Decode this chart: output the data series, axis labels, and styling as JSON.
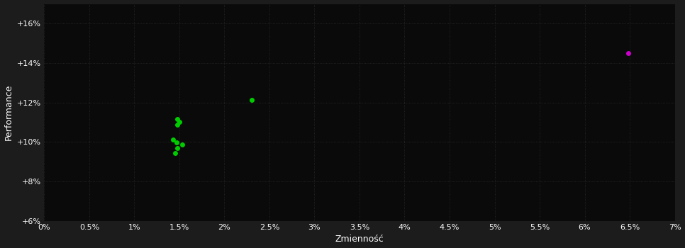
{
  "background_color": "#1c1c1c",
  "plot_bg_color": "#0a0a0a",
  "grid_color": "#2a2a2a",
  "text_color": "#ffffff",
  "xlabel": "Zmienność",
  "ylabel": "Performance",
  "xlim": [
    0.0,
    0.07
  ],
  "ylim": [
    0.06,
    0.17
  ],
  "xticks": [
    0.0,
    0.005,
    0.01,
    0.015,
    0.02,
    0.025,
    0.03,
    0.035,
    0.04,
    0.045,
    0.05,
    0.055,
    0.06,
    0.065,
    0.07
  ],
  "xtick_labels": [
    "0%",
    "0.5%",
    "1%",
    "1.5%",
    "2%",
    "2.5%",
    "3%",
    "3.5%",
    "4%",
    "4.5%",
    "5%",
    "5.5%",
    "6%",
    "6.5%",
    "7%"
  ],
  "yticks": [
    0.06,
    0.08,
    0.1,
    0.12,
    0.14,
    0.16
  ],
  "ytick_labels": [
    "+6%",
    "+8%",
    "+10%",
    "+12%",
    "+14%",
    "+16%"
  ],
  "green_points": [
    [
      0.0148,
      0.1118
    ],
    [
      0.015,
      0.1103
    ],
    [
      0.0148,
      0.1088
    ],
    [
      0.0143,
      0.1012
    ],
    [
      0.0147,
      0.0998
    ],
    [
      0.0153,
      0.0988
    ],
    [
      0.0148,
      0.0968
    ],
    [
      0.0145,
      0.0945
    ],
    [
      0.023,
      0.1215
    ]
  ],
  "magenta_points": [
    [
      0.0648,
      0.1452
    ]
  ],
  "green_color": "#00cc00",
  "magenta_color": "#cc00cc",
  "marker_size": 5,
  "grid_linestyle": ":",
  "grid_linewidth": 0.6,
  "tick_fontsize": 8,
  "label_fontsize": 9
}
